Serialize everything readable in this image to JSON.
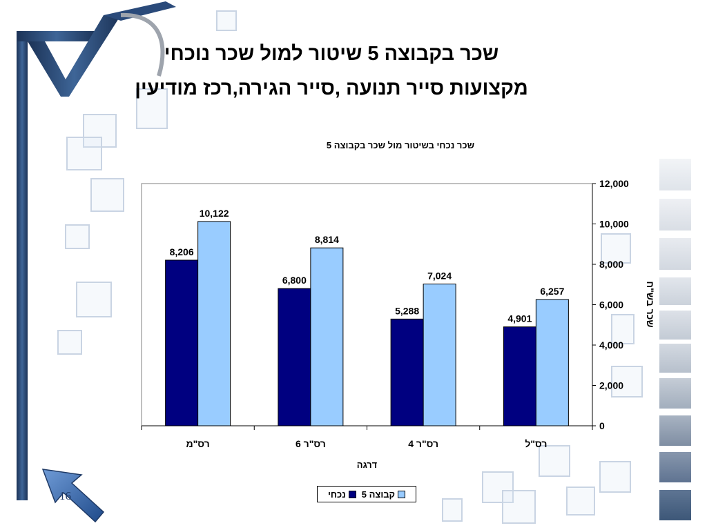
{
  "slide": {
    "title_line1": "שכר בקבוצה 5 שיטור למול שכר נוכחי",
    "title_line2": "מקצועות סייר תנועה ,סייר הגירה,רכז מודיעין",
    "slide_number": "16"
  },
  "colors": {
    "series_current": "#000080",
    "series_group5": "#99ccff",
    "frame_blue": "#2a4a7a",
    "arrow_blue": "#3d6db3"
  },
  "chart_data": {
    "type": "bar",
    "title": "שכר נכחי בשיטור  מול שכר בקבוצה 5",
    "xlabel": "דרגה",
    "ylabel": "שכר בש\"ח",
    "categories": [
      "רס\"מ",
      "רס\"ר 6",
      "רס\"ר 4",
      "רס\"ל"
    ],
    "series": [
      {
        "name": "נכחי",
        "values": [
          8206,
          6800,
          5288,
          4901
        ],
        "labels": [
          "8,206",
          "6,800",
          "5,288",
          "4,901"
        ]
      },
      {
        "name": "קבוצה 5",
        "values": [
          10122,
          8814,
          7024,
          6257
        ],
        "labels": [
          "10,122",
          "8,814",
          "7,024",
          "6,257"
        ]
      }
    ],
    "ylim": [
      0,
      12000
    ],
    "yticks": [
      0,
      2000,
      4000,
      6000,
      8000,
      10000,
      12000
    ],
    "ytick_labels": [
      "0",
      "2,000",
      "4,000",
      "6,000",
      "8,000",
      "10,000",
      "12,000"
    ],
    "y_axis_position": "right",
    "grid": false,
    "legend_position": "bottom"
  }
}
